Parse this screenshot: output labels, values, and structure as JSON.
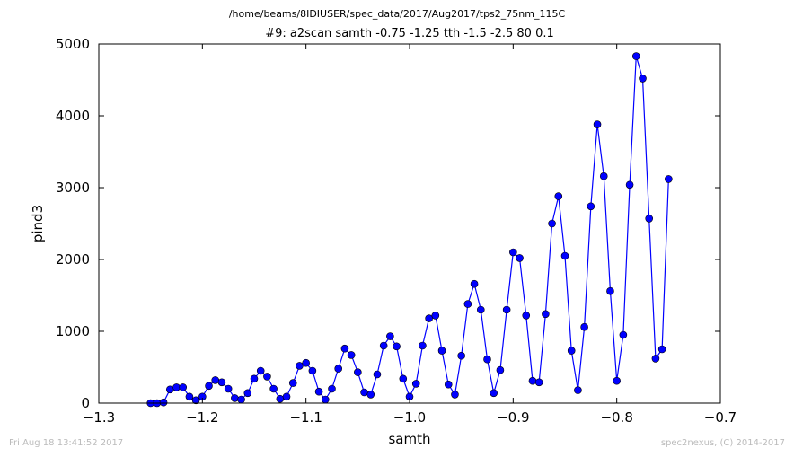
{
  "header": {
    "path_title": "/home/beams/8IDIUSER/spec_data/2017/Aug2017/tps2_75nm_115C",
    "scan_title": "#9: a2scan  samth -0.75 -1.25  tth -1.5 -2.5  80 0.1"
  },
  "footer": {
    "timestamp": "Fri Aug 18 13:41:52 2017",
    "credit": "spec2nexus, (C) 2014-2017"
  },
  "chart_data": {
    "type": "line",
    "title": "#9: a2scan  samth -0.75 -1.25  tth -1.5 -2.5  80 0.1",
    "xlabel": "samth",
    "ylabel": "pind3",
    "xlim": [
      -1.3,
      -0.7
    ],
    "ylim": [
      0,
      5000
    ],
    "xticks": [
      -1.3,
      -1.2,
      -1.1,
      -1.0,
      -0.9,
      -0.8,
      -0.7
    ],
    "xtick_labels": [
      "−1.3",
      "−1.2",
      "−1.1",
      "−1.0",
      "−0.9",
      "−0.8",
      "−0.7"
    ],
    "yticks": [
      0,
      1000,
      2000,
      3000,
      4000,
      5000
    ],
    "ytick_labels": [
      "0",
      "1000",
      "2000",
      "3000",
      "4000",
      "5000"
    ],
    "grid": false,
    "color": "#0000ff",
    "marker": "circle",
    "series": [
      {
        "x": [
          -1.25,
          -1.24375,
          -1.2375,
          -1.23125,
          -1.225,
          -1.21875,
          -1.2125,
          -1.20625,
          -1.2,
          -1.19375,
          -1.1875,
          -1.18125,
          -1.175,
          -1.16875,
          -1.1625,
          -1.15625,
          -1.15,
          -1.14375,
          -1.1375,
          -1.13125,
          -1.125,
          -1.11875,
          -1.1125,
          -1.10625,
          -1.1,
          -1.09375,
          -1.0875,
          -1.08125,
          -1.075,
          -1.06875,
          -1.0625,
          -1.05625,
          -1.05,
          -1.04375,
          -1.0375,
          -1.03125,
          -1.025,
          -1.01875,
          -1.0125,
          -1.00625,
          -1.0,
          -0.99375,
          -0.9875,
          -0.98125,
          -0.975,
          -0.96875,
          -0.9625,
          -0.95625,
          -0.95,
          -0.94375,
          -0.9375,
          -0.93125,
          -0.925,
          -0.91875,
          -0.9125,
          -0.90625,
          -0.9,
          -0.89375,
          -0.8875,
          -0.88125,
          -0.875,
          -0.86875,
          -0.8625,
          -0.85625,
          -0.85,
          -0.84375,
          -0.8375,
          -0.83125,
          -0.825,
          -0.81875,
          -0.8125,
          -0.80625,
          -0.8,
          -0.79375,
          -0.7875,
          -0.78125,
          -0.775,
          -0.76875,
          -0.7625,
          -0.75625,
          -0.75
        ],
        "y": [
          0,
          0,
          10,
          190,
          220,
          220,
          90,
          40,
          90,
          240,
          320,
          290,
          200,
          70,
          50,
          140,
          340,
          450,
          370,
          200,
          60,
          90,
          280,
          520,
          560,
          450,
          160,
          50,
          200,
          480,
          760,
          670,
          430,
          150,
          120,
          400,
          800,
          930,
          790,
          340,
          90,
          270,
          800,
          1180,
          1220,
          730,
          260,
          120,
          660,
          1380,
          1660,
          1300,
          610,
          140,
          460,
          1300,
          2100,
          2020,
          1220,
          310,
          290,
          1240,
          2500,
          2880,
          2050,
          730,
          180,
          1060,
          2740,
          3880,
          3160,
          1560,
          310,
          950,
          3040,
          4830,
          4520,
          2570,
          620,
          750,
          3120
        ]
      }
    ]
  }
}
